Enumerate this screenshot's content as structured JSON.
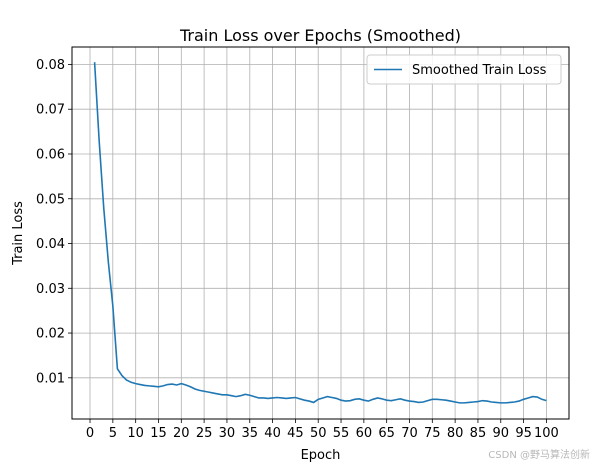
{
  "chart_data": {
    "type": "line",
    "title": "Train Loss over Epochs (Smoothed)",
    "xlabel": "Epoch",
    "ylabel": "Train Loss",
    "xlim": [
      -3.95,
      104.95
    ],
    "ylim": [
      0.0008,
      0.0839
    ],
    "x_ticks": [
      0,
      5,
      10,
      15,
      20,
      25,
      30,
      35,
      40,
      45,
      50,
      55,
      60,
      65,
      70,
      75,
      80,
      85,
      90,
      95,
      100
    ],
    "y_ticks": [
      0.01,
      0.02,
      0.03,
      0.04,
      0.05,
      0.06,
      0.07,
      0.08
    ],
    "y_tick_labels": [
      "0.01",
      "0.02",
      "0.03",
      "0.04",
      "0.05",
      "0.06",
      "0.07",
      "0.08"
    ],
    "grid": true,
    "legend_position": "top-right",
    "series": [
      {
        "name": "Smoothed Train Loss",
        "color": "#1f77b4",
        "x": [
          1,
          2,
          3,
          4,
          5,
          6,
          7,
          8,
          9,
          10,
          11,
          12,
          13,
          14,
          15,
          16,
          17,
          18,
          19,
          20,
          21,
          22,
          23,
          24,
          25,
          26,
          27,
          28,
          29,
          30,
          31,
          32,
          33,
          34,
          35,
          36,
          37,
          38,
          39,
          40,
          41,
          42,
          43,
          44,
          45,
          46,
          47,
          48,
          49,
          50,
          51,
          52,
          53,
          54,
          55,
          56,
          57,
          58,
          59,
          60,
          61,
          62,
          63,
          64,
          65,
          66,
          67,
          68,
          69,
          70,
          71,
          72,
          73,
          74,
          75,
          76,
          77,
          78,
          79,
          80,
          81,
          82,
          83,
          84,
          85,
          86,
          87,
          88,
          89,
          90,
          91,
          92,
          93,
          94,
          95,
          96,
          97,
          98,
          99,
          100
        ],
        "y": [
          0.0805,
          0.063,
          0.048,
          0.036,
          0.026,
          0.012,
          0.0105,
          0.0095,
          0.009,
          0.0087,
          0.0085,
          0.0083,
          0.0082,
          0.0081,
          0.008,
          0.0082,
          0.0085,
          0.0086,
          0.0084,
          0.0087,
          0.0084,
          0.008,
          0.0075,
          0.0072,
          0.007,
          0.0068,
          0.0066,
          0.0064,
          0.0062,
          0.0062,
          0.006,
          0.0058,
          0.006,
          0.0063,
          0.0061,
          0.0058,
          0.0055,
          0.0055,
          0.0054,
          0.0055,
          0.0056,
          0.0055,
          0.0054,
          0.0055,
          0.0056,
          0.0053,
          0.005,
          0.0048,
          0.0045,
          0.0052,
          0.0055,
          0.0058,
          0.0056,
          0.0054,
          0.005,
          0.0048,
          0.0049,
          0.0052,
          0.0053,
          0.005,
          0.0048,
          0.0052,
          0.0055,
          0.0053,
          0.005,
          0.0049,
          0.0051,
          0.0053,
          0.005,
          0.0048,
          0.0047,
          0.0045,
          0.0046,
          0.0049,
          0.0052,
          0.0052,
          0.0051,
          0.005,
          0.0048,
          0.0046,
          0.0044,
          0.0044,
          0.0045,
          0.0046,
          0.0047,
          0.0049,
          0.0048,
          0.0046,
          0.0045,
          0.0044,
          0.0044,
          0.0045,
          0.0046,
          0.0048,
          0.0052,
          0.0055,
          0.0058,
          0.0057,
          0.0052,
          0.0049
        ]
      }
    ]
  },
  "watermark": "CSDN @野马算法创新"
}
